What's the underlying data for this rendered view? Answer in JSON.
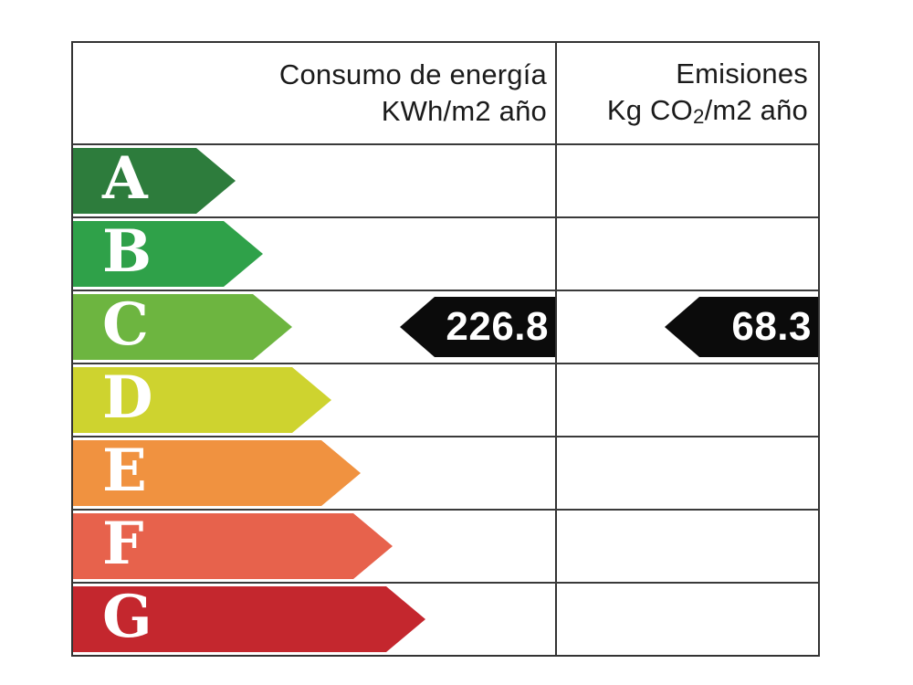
{
  "header": {
    "consumption_line1": "Consumo de energía",
    "consumption_line2_parts": {
      "p1": "KWh/m",
      "d1": "2",
      "p2": " año"
    },
    "emissions_line1": "Emisiones",
    "emissions_line2_parts": {
      "p1": "Kg CO",
      "sub": "2",
      "p2": "/m",
      "d2": "2",
      "p3": " año"
    }
  },
  "scale": {
    "border_color": "#333333",
    "ratings": [
      {
        "letter": "A",
        "color": "#2d7c3c",
        "arrow_width": 178
      },
      {
        "letter": "B",
        "color": "#2fa149",
        "arrow_width": 208
      },
      {
        "letter": "C",
        "color": "#6db540",
        "arrow_width": 240
      },
      {
        "letter": "D",
        "color": "#ced32f",
        "arrow_width": 283
      },
      {
        "letter": "E",
        "color": "#f09240",
        "arrow_width": 315
      },
      {
        "letter": "F",
        "color": "#e7624c",
        "arrow_width": 350
      },
      {
        "letter": "G",
        "color": "#c4272e",
        "arrow_width": 386
      }
    ]
  },
  "indicator": {
    "rating": "C",
    "consumption_value": "226.8",
    "emissions_value": "68.3",
    "arrow_color": "#0b0b0b",
    "text_color": "#ffffff",
    "consumption_arrow_width": 170,
    "emissions_arrow_width": 168
  },
  "chart_data": {
    "type": "bar",
    "title": "Etiqueta de eficiencia energética (escala A-G)",
    "categories": [
      "A",
      "B",
      "C",
      "D",
      "E",
      "F",
      "G"
    ],
    "series": [
      {
        "name": "scale_arrow_length_px",
        "values": [
          178,
          208,
          240,
          283,
          315,
          350,
          386
        ]
      }
    ],
    "bar_colors": [
      "#2d7c3c",
      "#2fa149",
      "#6db540",
      "#ced32f",
      "#f09240",
      "#e7624c",
      "#c4272e"
    ],
    "columns": [
      {
        "label": "Consumo de energía KWh/m2 año",
        "indicated_rating": "C",
        "value": 226.8
      },
      {
        "label": "Emisiones Kg CO2/m2 año",
        "indicated_rating": "C",
        "value": 68.3
      }
    ],
    "legend": "none",
    "orientation": "horizontal",
    "grid": "table-rows"
  }
}
